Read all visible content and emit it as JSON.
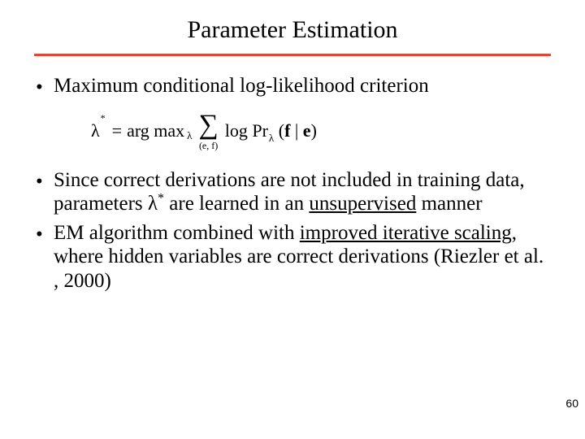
{
  "title": "Parameter Estimation",
  "rule_color": "#d94a3e",
  "bullets": {
    "b1_text": "Maximum conditional log-likelihood criterion",
    "b2_pre": "Since correct derivations are not included in training data, parameters λ",
    "b2_sup": "*",
    "b2_post": " are learned in an ",
    "b2_under": "unsupervised",
    "b2_tail": " manner",
    "b3_pre": "EM algorithm combined with ",
    "b3_under": "improved iterative scaling",
    "b3_post": ", where hidden variables are correct derivations (Riezler et al. , 2000)"
  },
  "formula": {
    "lambda": "λ",
    "star": "*",
    "eq": "=",
    "argmax": "arg max",
    "argmax_sub": "λ",
    "sigma": "∑",
    "sigma_sub": "(e, f)",
    "log": "log",
    "pr": "Pr",
    "pr_sub": "λ",
    "lparen": "(",
    "f": "f",
    "bar": " | ",
    "e": "e",
    "rparen": ")"
  },
  "page_number": "60"
}
